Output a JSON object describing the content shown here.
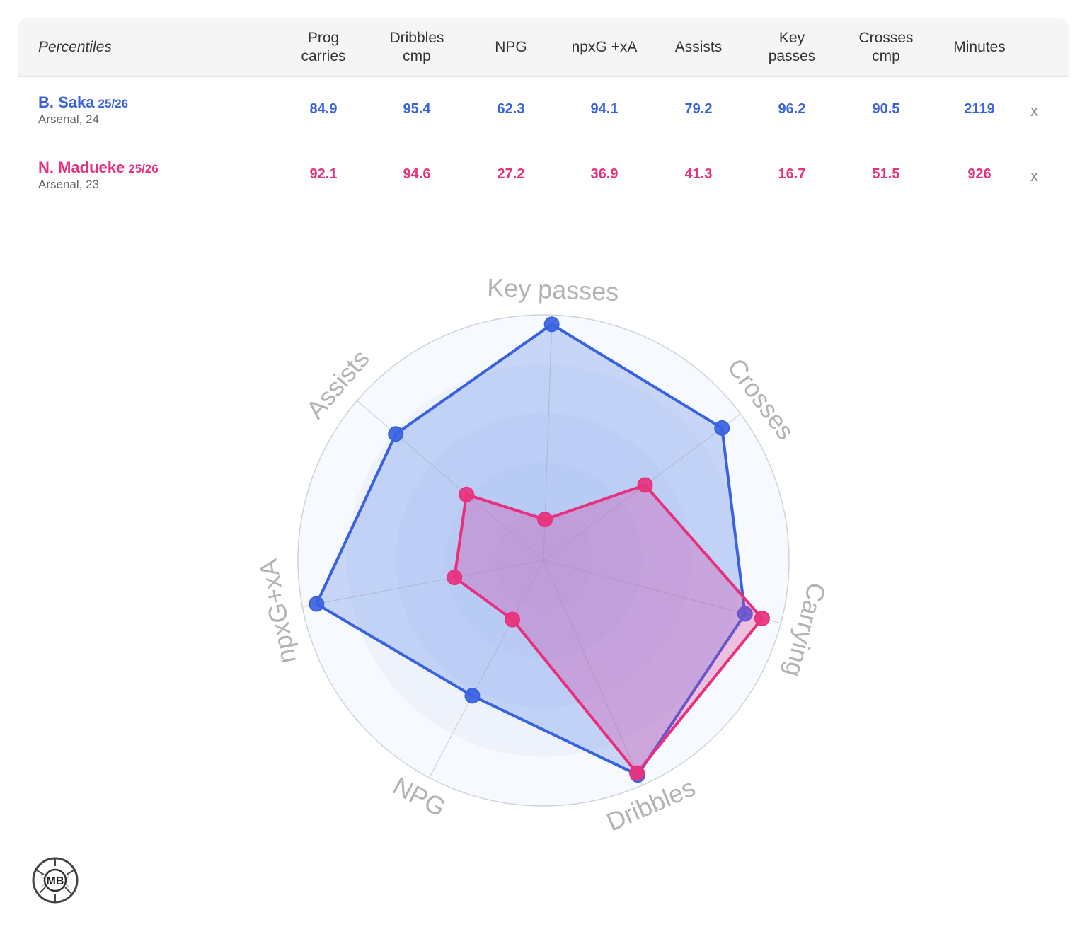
{
  "table": {
    "header_label": "Percentiles",
    "columns": [
      "Prog\ncarries",
      "Dribbles\ncmp",
      "NPG",
      "npxG +xA",
      "Assists",
      "Key\npasses",
      "Crosses\ncmp",
      "Minutes"
    ],
    "remove_label": "x",
    "players": [
      {
        "name": "B. Saka",
        "season": "25/26",
        "info": "Arsenal, 24",
        "color": "#3a62e0",
        "values": [
          "84.9",
          "95.4",
          "62.3",
          "94.1",
          "79.2",
          "96.2",
          "90.5",
          "2119"
        ]
      },
      {
        "name": "N. Madueke",
        "season": "25/26",
        "info": "Arsenal, 23",
        "color": "#e8317c",
        "values": [
          "92.1",
          "94.6",
          "27.2",
          "36.9",
          "41.3",
          "16.7",
          "51.5",
          "926"
        ]
      }
    ]
  },
  "chart_data": {
    "type": "radar",
    "axes": [
      "Key passes",
      "Crosses",
      "Carrying",
      "Dribbles",
      "NPG",
      "npxG+xA",
      "Assists"
    ],
    "range": [
      0,
      100
    ],
    "series": [
      {
        "name": "B. Saka",
        "color": "#3a62e0",
        "fill": "rgba(80,125,235,0.28)",
        "values": [
          96.2,
          90.5,
          84.9,
          95.4,
          62.3,
          94.1,
          79.2
        ]
      },
      {
        "name": "N. Madueke",
        "color": "#e8317c",
        "fill": "rgba(220,60,160,0.30)",
        "values": [
          16.7,
          51.5,
          92.1,
          94.6,
          27.2,
          36.9,
          41.3
        ]
      }
    ]
  },
  "logo": {
    "text": "MB",
    "icon": "football-logo-icon"
  }
}
